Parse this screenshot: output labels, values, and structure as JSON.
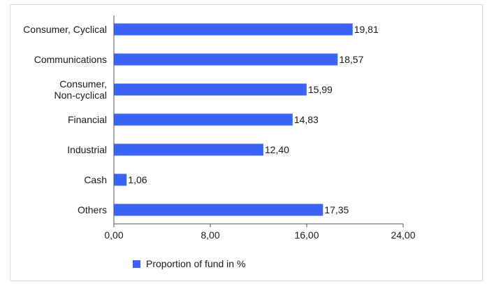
{
  "colors": {
    "bar": "#3b63f5",
    "axis": "#555555"
  },
  "chart_data": {
    "type": "bar",
    "orientation": "horizontal",
    "categories": [
      [
        "Consumer, Cyclical"
      ],
      [
        "Communications"
      ],
      [
        "Consumer,",
        "Non-cyclical"
      ],
      [
        "Financial"
      ],
      [
        "Industrial"
      ],
      [
        "Cash"
      ],
      [
        "Others"
      ]
    ],
    "values": [
      19.81,
      18.57,
      15.99,
      14.83,
      12.4,
      1.06,
      17.35
    ],
    "value_labels": [
      "19,81",
      "18,57",
      "15,99",
      "14,83",
      "12,40",
      "1,06",
      "17,35"
    ],
    "xlim": [
      0,
      24
    ],
    "ticks": [
      0,
      8,
      16,
      24
    ],
    "tick_labels": [
      "0,00",
      "8,00",
      "16,00",
      "24,00"
    ],
    "grid": false,
    "legend": {
      "label": "Proportion of fund in %",
      "position": "bottom"
    }
  }
}
